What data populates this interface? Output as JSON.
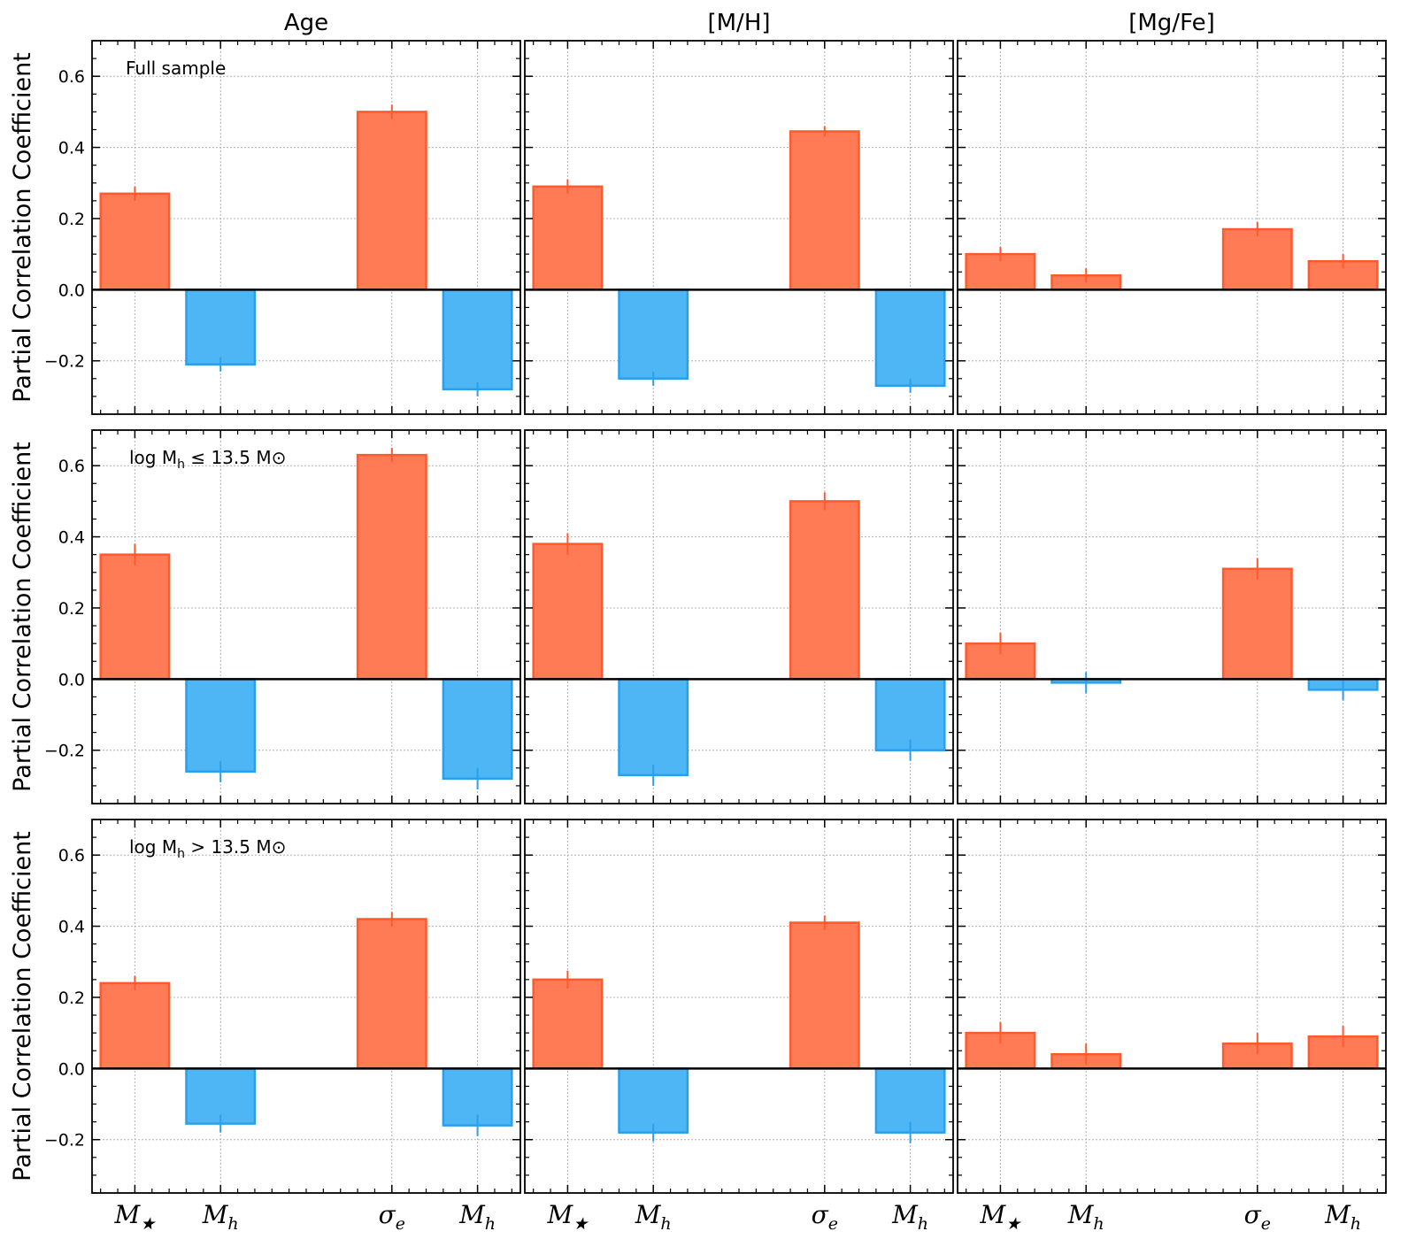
{
  "chart_data": {
    "type": "bar",
    "ylabel": "Partial Correlation Coefficient",
    "ylim": [
      -0.35,
      0.7
    ],
    "yticks": [
      -0.2,
      0.0,
      0.2,
      0.4,
      0.6
    ],
    "ytick_labels": [
      "−0.2",
      "0.0",
      "0.2",
      "0.4",
      "0.6"
    ],
    "grid": true,
    "column_titles": [
      "Age",
      "[M/H]",
      "[Mg/Fe]"
    ],
    "row_annotations": [
      {
        "text": "Full sample",
        "main": "",
        "sub": "",
        "tail": ""
      },
      {
        "text": "log M_h ≤ 13.5 M_⊙",
        "main": "log M",
        "sub": "h",
        "tail": " ≤ 13.5 M⊙"
      },
      {
        "text": "log M_h > 13.5 M_⊙",
        "main": "log M",
        "sub": "h",
        "tail": " > 13.5 M⊙"
      }
    ],
    "categories": [
      {
        "label": "M★",
        "x": 0
      },
      {
        "label": "M_h",
        "x": 1
      },
      {
        "label": "σ_e",
        "x": 3
      },
      {
        "label": "M_h",
        "x": 4
      }
    ],
    "xtick_display": [
      {
        "main": "M",
        "sub": "★"
      },
      {
        "main": "M",
        "sub": "h"
      },
      {
        "main": "σ",
        "sub": "e"
      },
      {
        "main": "M",
        "sub": "h"
      }
    ],
    "colors": {
      "positive_fill": "#ff7b56",
      "positive_edge": "#ff5a2e",
      "negative_fill": "#4fb6f6",
      "negative_edge": "#2aa0ea",
      "grid": "#b0b0b0",
      "axis": "#000000"
    },
    "panels": [
      {
        "row": 0,
        "col": 0,
        "values": [
          0.27,
          -0.21,
          0.5,
          -0.28
        ],
        "errors": [
          0.02,
          0.02,
          0.02,
          0.02
        ]
      },
      {
        "row": 0,
        "col": 1,
        "values": [
          0.29,
          -0.25,
          0.445,
          -0.27
        ],
        "errors": [
          0.02,
          0.02,
          0.015,
          0.02
        ]
      },
      {
        "row": 0,
        "col": 2,
        "values": [
          0.1,
          0.04,
          0.17,
          0.08
        ],
        "errors": [
          0.02,
          0.02,
          0.02,
          0.02
        ]
      },
      {
        "row": 1,
        "col": 0,
        "values": [
          0.35,
          -0.26,
          0.63,
          -0.28
        ],
        "errors": [
          0.03,
          0.03,
          0.02,
          0.03
        ]
      },
      {
        "row": 1,
        "col": 1,
        "values": [
          0.38,
          -0.27,
          0.5,
          -0.2
        ],
        "errors": [
          0.03,
          0.03,
          0.025,
          0.03
        ]
      },
      {
        "row": 1,
        "col": 2,
        "values": [
          0.1,
          -0.01,
          0.31,
          -0.03
        ],
        "errors": [
          0.03,
          0.03,
          0.03,
          0.03
        ]
      },
      {
        "row": 2,
        "col": 0,
        "values": [
          0.24,
          -0.155,
          0.42,
          -0.16
        ],
        "errors": [
          0.02,
          0.025,
          0.02,
          0.03
        ]
      },
      {
        "row": 2,
        "col": 1,
        "values": [
          0.25,
          -0.18,
          0.41,
          -0.18
        ],
        "errors": [
          0.025,
          0.025,
          0.02,
          0.03
        ]
      },
      {
        "row": 2,
        "col": 2,
        "values": [
          0.1,
          0.04,
          0.07,
          0.09
        ],
        "errors": [
          0.03,
          0.03,
          0.03,
          0.03
        ]
      }
    ]
  }
}
